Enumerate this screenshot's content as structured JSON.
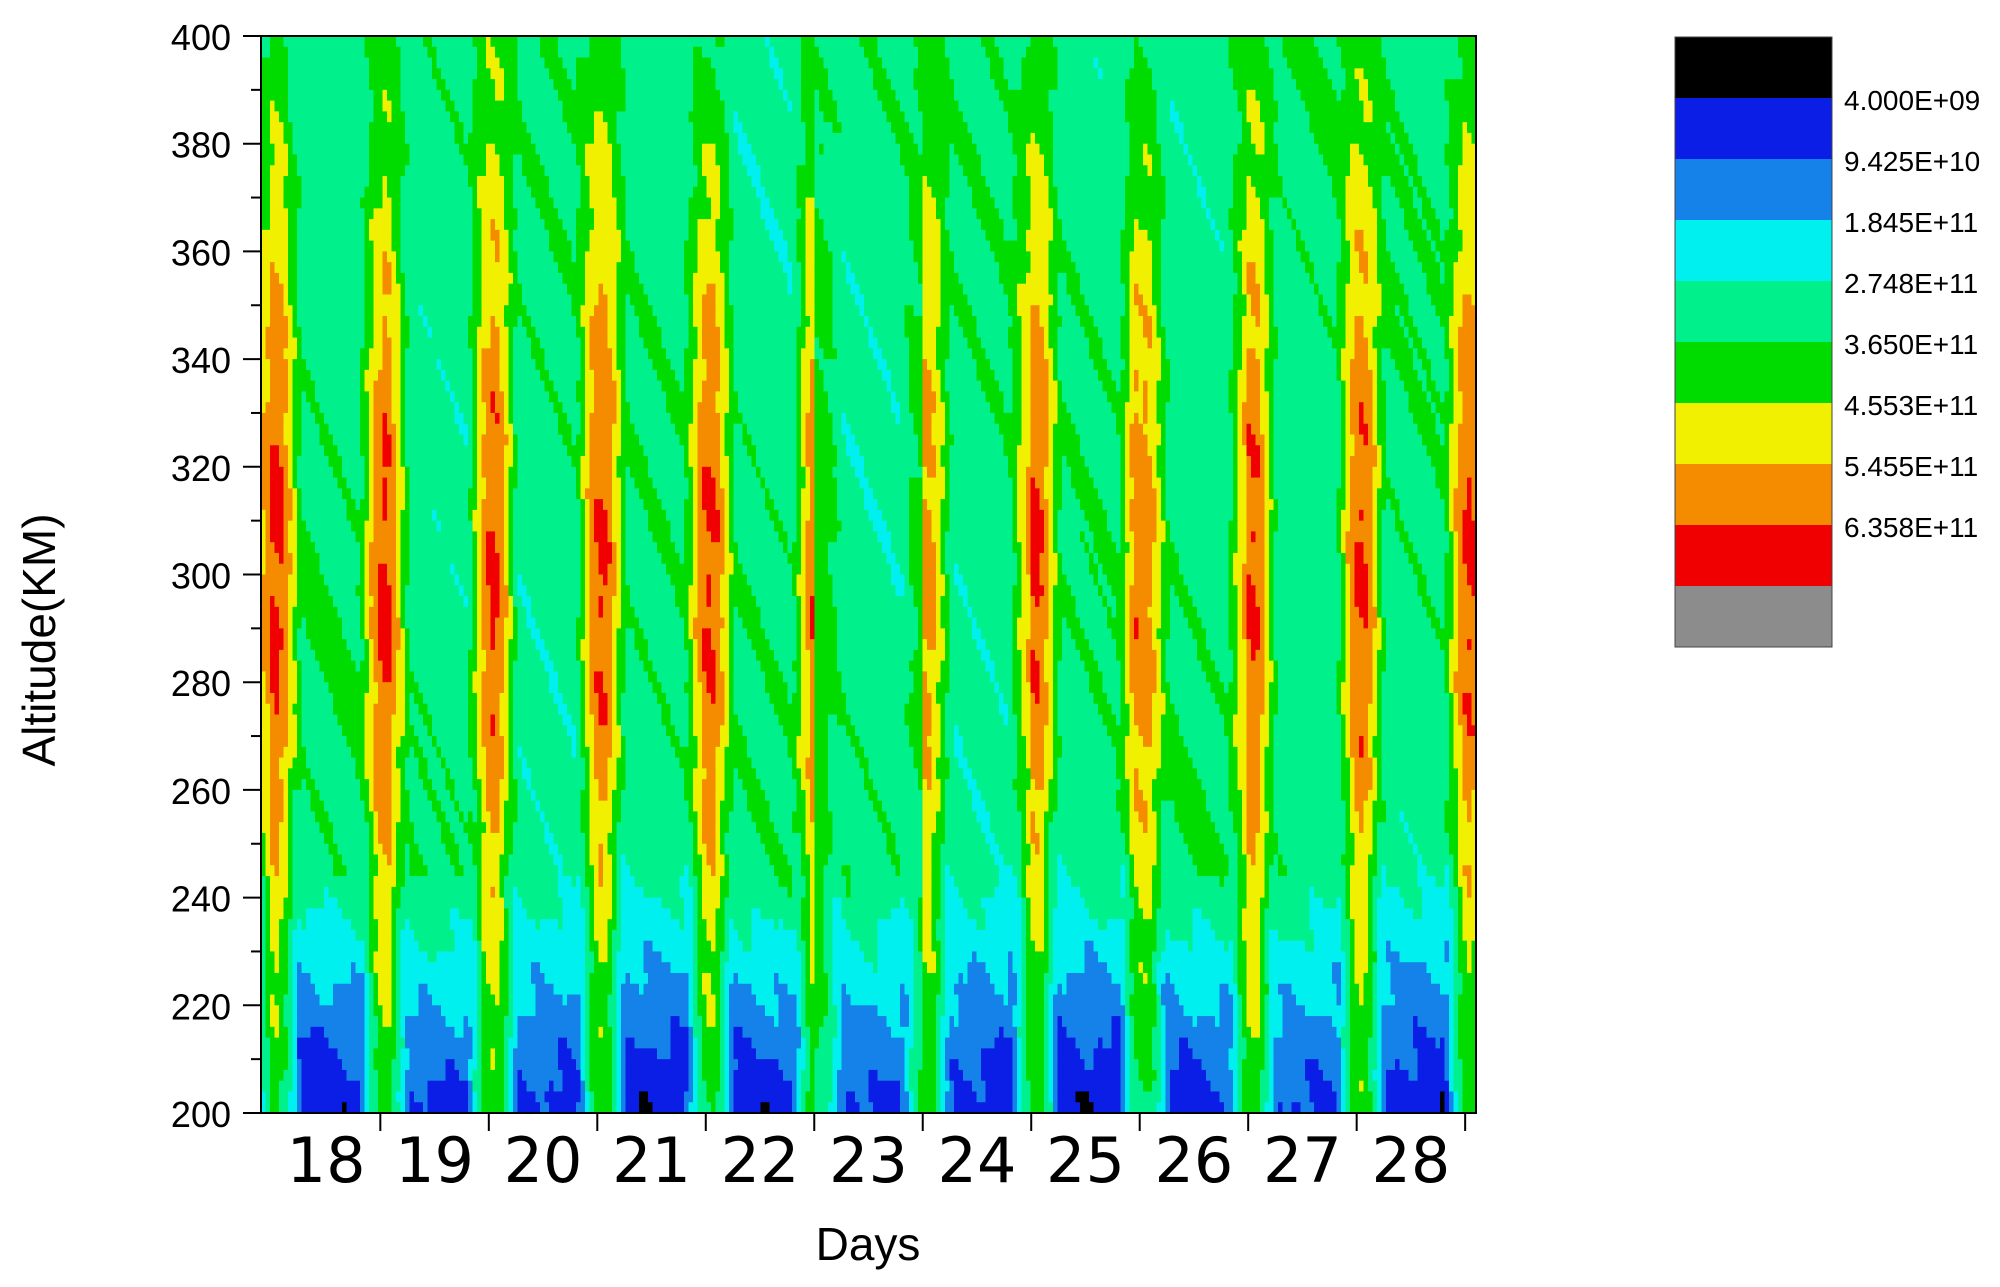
{
  "chart_data": {
    "type": "heatmap",
    "title": "",
    "xlabel": "Days",
    "ylabel": "Altitude(KM)",
    "x_ticks": [
      "18",
      "19",
      "20",
      "21",
      "22",
      "23",
      "24",
      "25",
      "26",
      "27",
      "28"
    ],
    "y_ticks": [
      200,
      220,
      240,
      260,
      280,
      300,
      320,
      340,
      360,
      380,
      400
    ],
    "xlim": [
      17.4,
      28.6
    ],
    "ylim": [
      200,
      400
    ],
    "legend_position": "right",
    "legend": {
      "labels": [
        "4.000E+09",
        "9.425E+10",
        "1.845E+11",
        "2.748E+11",
        "3.650E+11",
        "4.553E+11",
        "5.455E+11",
        "6.358E+11"
      ],
      "colors": [
        "#000000",
        "#0a1ee6",
        "#1482e8",
        "#00f0f0",
        "#00f08c",
        "#00dc00",
        "#f0f000",
        "#f58c00",
        "#f00000",
        "#8c8c8c"
      ]
    },
    "series": [
      {
        "day": "18",
        "peak_value": 650000000000.0,
        "peak_altitude": 300
      },
      {
        "day": "19",
        "peak_value": 650000000000.0,
        "peak_altitude": 300
      },
      {
        "day": "20",
        "peak_value": 650000000000.0,
        "peak_altitude": 300
      },
      {
        "day": "21",
        "peak_value": 650000000000.0,
        "peak_altitude": 300
      },
      {
        "day": "22",
        "peak_value": 650000000000.0,
        "peak_altitude": 300
      },
      {
        "day": "23",
        "peak_value": 420000000000.0,
        "peak_altitude": 300
      },
      {
        "day": "24",
        "peak_value": 580000000000.0,
        "peak_altitude": 300
      },
      {
        "day": "25",
        "peak_value": 650000000000.0,
        "peak_altitude": 300
      },
      {
        "day": "26",
        "peak_value": 600000000000.0,
        "peak_altitude": 300
      },
      {
        "day": "27",
        "peak_value": 650000000000.0,
        "peak_altitude": 300
      },
      {
        "day": "28",
        "peak_value": 650000000000.0,
        "peak_altitude": 300
      }
    ]
  }
}
